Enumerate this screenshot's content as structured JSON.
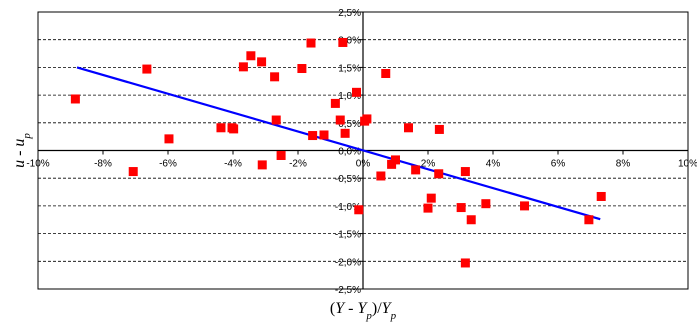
{
  "chart_data": {
    "type": "scatter",
    "title": "",
    "xlabel": "(Y - Yp)/Yp",
    "ylabel": "u - up",
    "xlabel_parts": [
      {
        "text": "(",
        "italic": false,
        "sub": false
      },
      {
        "text": "Y",
        "italic": true,
        "sub": false
      },
      {
        "text": " - ",
        "italic": false,
        "sub": false
      },
      {
        "text": "Y",
        "italic": true,
        "sub": false
      },
      {
        "text": "p",
        "italic": true,
        "sub": true
      },
      {
        "text": ")/",
        "italic": false,
        "sub": false
      },
      {
        "text": "Y",
        "italic": true,
        "sub": false
      },
      {
        "text": "p",
        "italic": true,
        "sub": true
      }
    ],
    "ylabel_parts": [
      {
        "text": "u",
        "italic": true,
        "sub": false
      },
      {
        "text": " - ",
        "italic": false,
        "sub": false
      },
      {
        "text": "u",
        "italic": true,
        "sub": false
      },
      {
        "text": "p",
        "italic": true,
        "sub": true
      }
    ],
    "xlim": [
      -0.1,
      0.1
    ],
    "ylim": [
      -0.025,
      0.025
    ],
    "x_ticks": [
      {
        "value": -0.1,
        "label": "-10%"
      },
      {
        "value": -0.08,
        "label": "-8%"
      },
      {
        "value": -0.06,
        "label": "-6%"
      },
      {
        "value": -0.04,
        "label": "-4%"
      },
      {
        "value": -0.02,
        "label": "-2%"
      },
      {
        "value": 0.0,
        "label": "0%"
      },
      {
        "value": 0.02,
        "label": "2%"
      },
      {
        "value": 0.04,
        "label": "4%"
      },
      {
        "value": 0.06,
        "label": "6%"
      },
      {
        "value": 0.08,
        "label": "8%"
      },
      {
        "value": 0.1,
        "label": "10%"
      }
    ],
    "y_ticks": [
      {
        "value": 0.025,
        "label": "2,5%"
      },
      {
        "value": 0.02,
        "label": "2,0%"
      },
      {
        "value": 0.015,
        "label": "1,5%"
      },
      {
        "value": 0.01,
        "label": "1,0%"
      },
      {
        "value": 0.005,
        "label": "0,5%"
      },
      {
        "value": 0.0,
        "label": "0,0%"
      },
      {
        "value": -0.005,
        "label": "-0,5%"
      },
      {
        "value": -0.01,
        "label": "-1,0%"
      },
      {
        "value": -0.015,
        "label": "-1,5%"
      },
      {
        "value": -0.02,
        "label": "-2,0%"
      },
      {
        "value": -0.025,
        "label": "-2,5%"
      }
    ],
    "grid": {
      "horizontal": true,
      "vertical": false,
      "style": "dashed"
    },
    "legend": "none",
    "series": [
      {
        "marker": "square",
        "color": "#ff0000",
        "points": [
          {
            "x": -0.0885,
            "y": 0.0093
          },
          {
            "x": -0.0707,
            "y": -0.0038
          },
          {
            "x": -0.0665,
            "y": 0.0147
          },
          {
            "x": -0.0597,
            "y": 0.0021
          },
          {
            "x": -0.0437,
            "y": 0.0041
          },
          {
            "x": -0.0403,
            "y": 0.0041
          },
          {
            "x": -0.0398,
            "y": 0.0039
          },
          {
            "x": -0.0368,
            "y": 0.0151
          },
          {
            "x": -0.0345,
            "y": 0.0171
          },
          {
            "x": -0.0312,
            "y": 0.016
          },
          {
            "x": -0.031,
            "y": -0.0026
          },
          {
            "x": -0.0272,
            "y": 0.0133
          },
          {
            "x": -0.0267,
            "y": 0.0055
          },
          {
            "x": -0.0252,
            "y": -0.0009
          },
          {
            "x": -0.0188,
            "y": 0.0148
          },
          {
            "x": -0.016,
            "y": 0.0194
          },
          {
            "x": -0.0155,
            "y": 0.0027
          },
          {
            "x": -0.012,
            "y": 0.0028
          },
          {
            "x": -0.0085,
            "y": 0.0085
          },
          {
            "x": -0.007,
            "y": 0.0055
          },
          {
            "x": -0.0062,
            "y": 0.0195
          },
          {
            "x": -0.0055,
            "y": 0.0031
          },
          {
            "x": -0.002,
            "y": 0.0105
          },
          {
            "x": -0.0013,
            "y": -0.0107
          },
          {
            "x": 0.0005,
            "y": 0.0053
          },
          {
            "x": 0.0012,
            "y": 0.0057
          },
          {
            "x": 0.0055,
            "y": -0.0046
          },
          {
            "x": 0.007,
            "y": 0.0139
          },
          {
            "x": 0.0088,
            "y": -0.0025
          },
          {
            "x": 0.01,
            "y": -0.0017
          },
          {
            "x": 0.014,
            "y": 0.0041
          },
          {
            "x": 0.0162,
            "y": -0.0035
          },
          {
            "x": 0.02,
            "y": -0.0104
          },
          {
            "x": 0.021,
            "y": -0.0086
          },
          {
            "x": 0.0233,
            "y": -0.0042
          },
          {
            "x": 0.0235,
            "y": 0.0038
          },
          {
            "x": 0.0302,
            "y": -0.0103
          },
          {
            "x": 0.0315,
            "y": -0.0038
          },
          {
            "x": 0.0315,
            "y": -0.0203
          },
          {
            "x": 0.0333,
            "y": -0.0125
          },
          {
            "x": 0.0378,
            "y": -0.0096
          },
          {
            "x": 0.0497,
            "y": -0.01
          },
          {
            "x": 0.0695,
            "y": -0.0125
          },
          {
            "x": 0.0733,
            "y": -0.0083
          }
        ]
      }
    ],
    "trendline": {
      "type": "linear",
      "color": "#0000ff",
      "from": {
        "x": -0.088,
        "y": 0.015
      },
      "to": {
        "x": 0.073,
        "y": -0.0124
      }
    }
  }
}
